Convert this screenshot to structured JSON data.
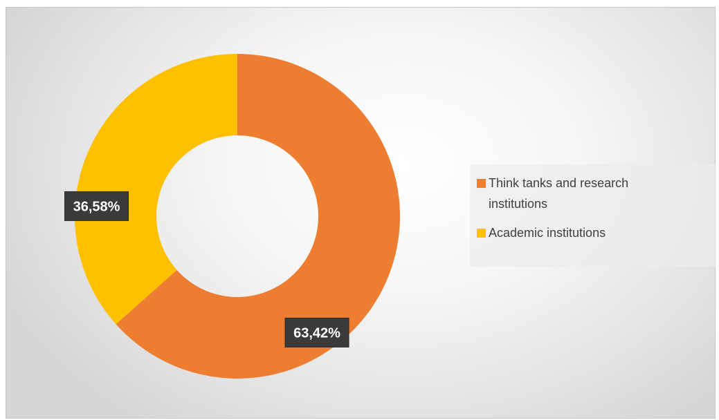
{
  "chart_data": {
    "type": "pie",
    "variant": "donut",
    "categories": [
      "Think tanks and research institutions",
      "Academic institutions"
    ],
    "values": [
      63.42,
      36.58
    ],
    "value_labels": [
      "63,42%",
      "36,58%"
    ],
    "colors": [
      "#ED7D31",
      "#FFC000"
    ],
    "legend_position": "right"
  },
  "legend": {
    "items": [
      {
        "label": "Think tanks and research institutions",
        "color": "#ED7D31"
      },
      {
        "label": "Academic institutions",
        "color": "#FFC000"
      }
    ]
  }
}
